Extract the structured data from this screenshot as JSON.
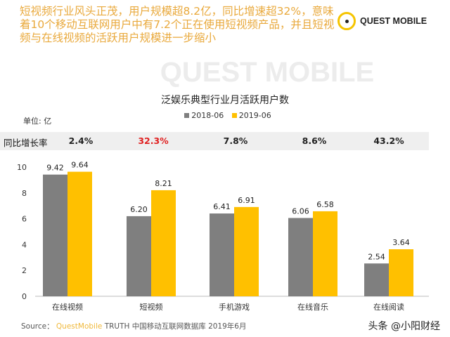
{
  "headline": "短视频行业风头正茂，用户规模超8.2亿，同比增速超32%，意味着10个移动互联网用户中有7.2个正在使用短视频产品，并且短视频与在线视频的活跃用户规模进一步缩小",
  "logo": {
    "text": "QUEST MOBILE"
  },
  "watermark_bg": "QUEST MOBILE",
  "unit": "单位: 亿",
  "growth": {
    "label": "同比增长率",
    "values": [
      "2.4%",
      "32.3%",
      "7.8%",
      "8.6%",
      "43.2%"
    ],
    "highlight_color": "#e02020"
  },
  "source": {
    "prefix": "Source：",
    "brand": "QuestMobile",
    "rest": "TRUTH 中国移动互联网数据库 2019年6月"
  },
  "credit": "头条 @小阳财经",
  "chart_data": {
    "type": "bar",
    "title": "泛娱乐典型行业月活跃用户数",
    "categories": [
      "在线视频",
      "短视频",
      "手机游戏",
      "在线音乐",
      "在线阅读"
    ],
    "series": [
      {
        "name": "2018-06",
        "values": [
          9.42,
          6.2,
          6.41,
          6.06,
          2.54
        ],
        "color": "#7f7f7f"
      },
      {
        "name": "2019-06",
        "values": [
          9.64,
          8.21,
          6.91,
          6.58,
          3.64
        ],
        "color": "#ffc000"
      }
    ],
    "ylim": [
      0,
      10
    ],
    "yticks": [
      0,
      2,
      4,
      6,
      8,
      10
    ],
    "grid": false,
    "legend": "top"
  }
}
